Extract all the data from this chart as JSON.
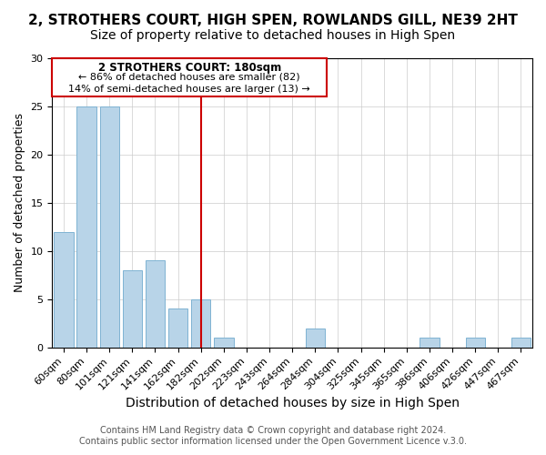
{
  "title_line1": "2, STROTHERS COURT, HIGH SPEN, ROWLANDS GILL, NE39 2HT",
  "title_line2": "Size of property relative to detached houses in High Spen",
  "xlabel": "Distribution of detached houses by size in High Spen",
  "ylabel": "Number of detached properties",
  "bin_labels": [
    "60sqm",
    "80sqm",
    "101sqm",
    "121sqm",
    "141sqm",
    "162sqm",
    "182sqm",
    "202sqm",
    "223sqm",
    "243sqm",
    "264sqm",
    "284sqm",
    "304sqm",
    "325sqm",
    "345sqm",
    "365sqm",
    "386sqm",
    "406sqm",
    "426sqm",
    "447sqm",
    "467sqm"
  ],
  "bar_heights": [
    12,
    25,
    25,
    8,
    9,
    4,
    5,
    1,
    0,
    0,
    0,
    2,
    0,
    0,
    0,
    0,
    1,
    0,
    1,
    0,
    1
  ],
  "bar_color": "#b8d4e8",
  "bar_edge_color": "#7fb3d3",
  "vline_x": 6,
  "vline_color": "#cc0000",
  "annotation_title": "2 STROTHERS COURT: 180sqm",
  "annotation_line1": "← 86% of detached houses are smaller (82)",
  "annotation_line2": "14% of semi-detached houses are larger (13) →",
  "annotation_box_edge": "#cc0000",
  "ylim": [
    0,
    30
  ],
  "yticks": [
    0,
    5,
    10,
    15,
    20,
    25,
    30
  ],
  "footer_line1": "Contains HM Land Registry data © Crown copyright and database right 2024.",
  "footer_line2": "Contains public sector information licensed under the Open Government Licence v.3.0.",
  "title_fontsize": 11,
  "subtitle_fontsize": 10,
  "xlabel_fontsize": 10,
  "ylabel_fontsize": 9,
  "tick_fontsize": 8,
  "footer_fontsize": 7
}
